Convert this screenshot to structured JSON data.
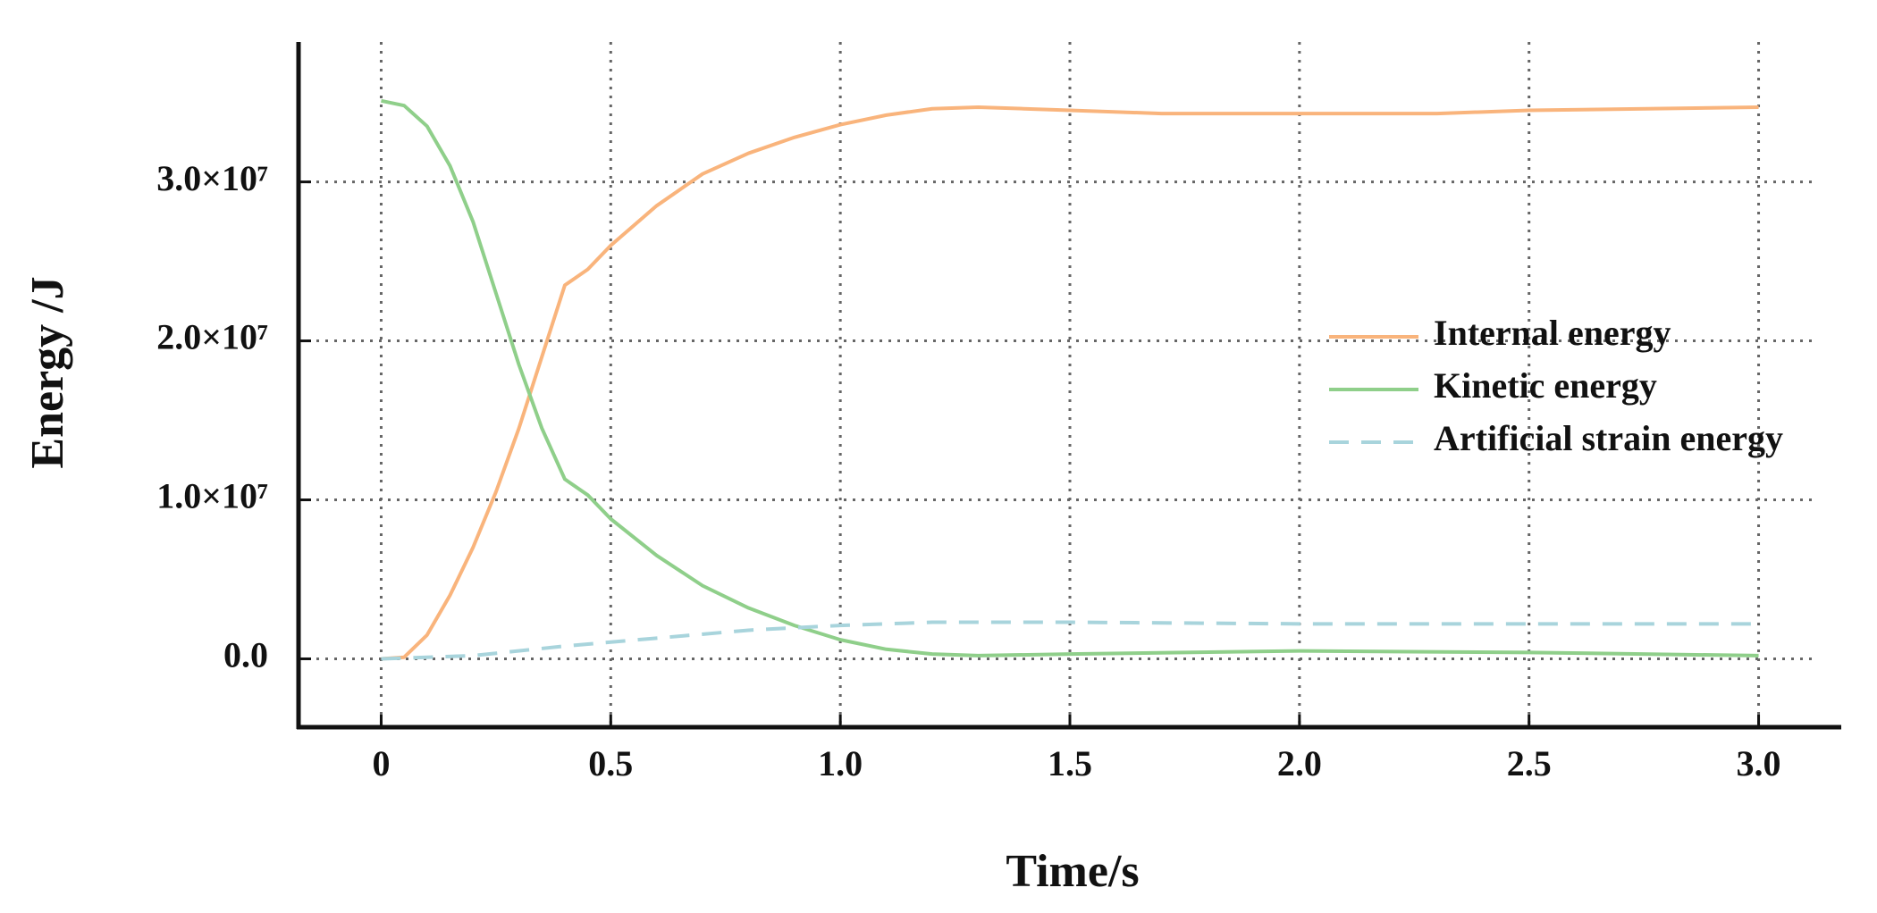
{
  "chart_data": {
    "type": "line",
    "x_label": "Time/s",
    "y_label": "Energy /J",
    "xlim": [
      -0.18,
      3.18
    ],
    "ylim": [
      -4300000,
      38800000
    ],
    "xticks": [
      0,
      0.5,
      {
        "value": 1,
        "label": "1.0"
      },
      1.5,
      {
        "value": 2,
        "label": "2.0"
      },
      2.5,
      {
        "value": 3,
        "label": "3.0"
      }
    ],
    "yticks": [
      {
        "value": 0,
        "label": "0.0"
      },
      {
        "value": 10000000,
        "label": "1.0×10⁷"
      },
      {
        "value": 20000000,
        "label": "2.0×10⁷"
      },
      {
        "value": 30000000,
        "label": "3.0×10⁷"
      }
    ],
    "grid": true,
    "legend_position": "center right",
    "series": [
      {
        "name": "Internal energy",
        "color": "#f9b47c",
        "dashed": false,
        "x": [
          0,
          0.05,
          0.1,
          0.15,
          0.2,
          0.25,
          0.3,
          0.35,
          0.4,
          0.45,
          0.5,
          0.6,
          0.7,
          0.8,
          0.9,
          1.0,
          1.1,
          1.2,
          1.3,
          1.4,
          1.5,
          1.7,
          2.0,
          2.3,
          2.5,
          3.0
        ],
        "values": [
          0,
          100000,
          1500000,
          4000000,
          7000000,
          10500000,
          14500000,
          19000000,
          23500000,
          24500000,
          26000000,
          28500000,
          30500000,
          31800000,
          32800000,
          33600000,
          34200000,
          34600000,
          34700000,
          34600000,
          34500000,
          34300000,
          34300000,
          34300000,
          34500000,
          34700000
        ]
      },
      {
        "name": "Kinetic energy",
        "color": "#8fcf8a",
        "dashed": false,
        "x": [
          0,
          0.05,
          0.1,
          0.15,
          0.2,
          0.25,
          0.3,
          0.35,
          0.4,
          0.45,
          0.5,
          0.6,
          0.7,
          0.8,
          0.9,
          1.0,
          1.1,
          1.2,
          1.3,
          1.5,
          2.0,
          2.5,
          3.0
        ],
        "values": [
          35100000,
          34800000,
          33500000,
          31000000,
          27500000,
          23000000,
          18500000,
          14500000,
          11300000,
          10300000,
          8800000,
          6500000,
          4600000,
          3200000,
          2100000,
          1200000,
          600000,
          300000,
          200000,
          300000,
          500000,
          400000,
          200000
        ]
      },
      {
        "name": "Artificial strain energy",
        "color": "#a8d4dc",
        "dashed": true,
        "x": [
          0,
          0.2,
          0.4,
          0.6,
          0.8,
          1.0,
          1.2,
          1.5,
          2.0,
          3.0
        ],
        "values": [
          0,
          200000,
          800000,
          1300000,
          1800000,
          2100000,
          2300000,
          2300000,
          2200000,
          2200000
        ]
      }
    ]
  }
}
